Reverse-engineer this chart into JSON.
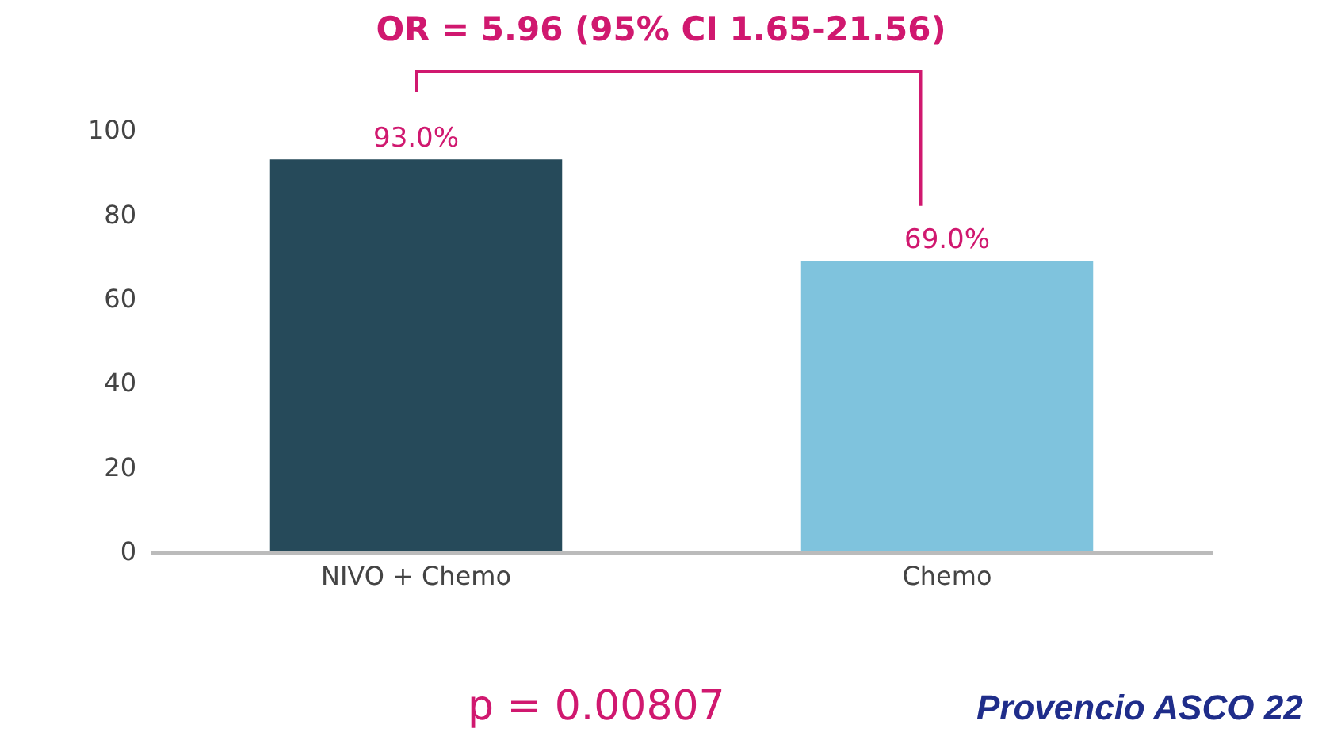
{
  "chart_data": {
    "type": "bar",
    "title": "OR = 5.96 (95% CI 1.65-21.56)",
    "categories": [
      "NIVO + Chemo",
      "Chemo"
    ],
    "values": [
      93.0,
      69.0
    ],
    "colors": [
      "#264a5a",
      "#7fc3dd"
    ],
    "value_labels": [
      "93.0%",
      "69.0%"
    ],
    "ylim": [
      0,
      100
    ],
    "yticks": [
      0,
      20,
      40,
      60,
      80,
      100
    ],
    "legend": false,
    "annotations": [
      "p = 0.00807",
      "Provencio ASCO 22"
    ]
  }
}
